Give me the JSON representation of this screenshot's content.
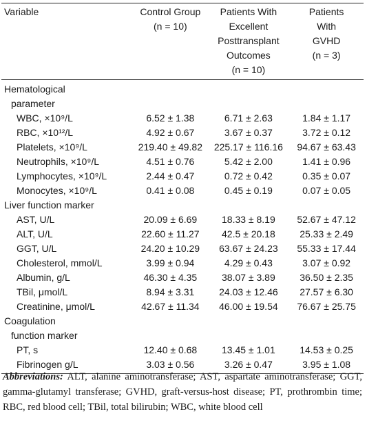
{
  "table": {
    "headers": [
      {
        "lines": [
          "Variable"
        ]
      },
      {
        "lines": [
          "Control Group",
          "(n = 10)"
        ]
      },
      {
        "lines": [
          "Patients With",
          "Excellent",
          "Posttransplant",
          "Outcomes",
          "(n = 10)"
        ]
      },
      {
        "lines": [
          "Patients",
          "With",
          "GVHD",
          "(n = 3)"
        ]
      }
    ],
    "sections": [
      {
        "title_lines": [
          "Hematological",
          "parameter"
        ],
        "rows": [
          {
            "label": "WBC, ×10⁹/L",
            "values": [
              "6.52 ± 1.38",
              "6.71 ± 2.63",
              "1.84 ± 1.17"
            ]
          },
          {
            "label": "RBC, ×10¹²/L",
            "values": [
              "4.92 ± 0.67",
              "3.67 ± 0.37",
              "3.72 ± 0.12"
            ]
          },
          {
            "label": "Platelets, ×10⁹/L",
            "values": [
              "219.40 ± 49.82",
              "225.17 ± 116.16",
              "94.67 ± 63.43"
            ]
          },
          {
            "label": "Neutrophils, ×10⁹/L",
            "values": [
              "4.51 ± 0.76",
              "5.42 ± 2.00",
              "1.41 ± 0.96"
            ]
          },
          {
            "label": "Lymphocytes, ×10⁹/L",
            "values": [
              "2.44 ± 0.47",
              "0.72 ± 0.42",
              "0.35 ± 0.07"
            ]
          },
          {
            "label": "Monocytes, ×10⁹/L",
            "values": [
              "0.41 ± 0.08",
              "0.45 ± 0.19",
              "0.07 ± 0.05"
            ]
          }
        ]
      },
      {
        "title_lines": [
          "Liver function marker"
        ],
        "rows": [
          {
            "label": "AST, U/L",
            "values": [
              "20.09 ± 6.69",
              "18.33 ± 8.19",
              "52.67 ± 47.12"
            ]
          },
          {
            "label": "ALT, U/L",
            "values": [
              "22.60 ± 11.27",
              "42.5 ± 20.18",
              "25.33 ± 2.49"
            ]
          },
          {
            "label": "GGT, U/L",
            "values": [
              "24.20 ± 10.29",
              "63.67 ± 24.23",
              "55.33 ± 17.44"
            ]
          },
          {
            "label": "Cholesterol, mmol/L",
            "values": [
              "3.99 ± 0.94",
              "4.29 ± 0.43",
              "3.07 ± 0.92"
            ]
          },
          {
            "label": "Albumin, g/L",
            "values": [
              "46.30 ± 4.35",
              "38.07 ± 3.89",
              "36.50 ± 2.35"
            ]
          },
          {
            "label": "TBil, μmol/L",
            "values": [
              "8.94 ± 3.31",
              "24.03 ± 12.46",
              "27.57 ± 6.30"
            ]
          },
          {
            "label": "Creatinine, μmol/L",
            "values": [
              "42.67 ± 11.34",
              "46.00 ± 19.54",
              "76.67 ± 25.75"
            ]
          }
        ]
      },
      {
        "title_lines": [
          "Coagulation",
          "function marker"
        ],
        "rows": [
          {
            "label": "PT, s",
            "values": [
              "12.40 ± 0.68",
              "13.45 ± 1.01",
              "14.53 ± 0.25"
            ]
          },
          {
            "label": "Fibrinogen g/L",
            "values": [
              "3.03 ± 0.56",
              "3.26 ± 0.47",
              "3.95 ± 1.08"
            ]
          }
        ]
      }
    ]
  },
  "abbreviations": {
    "label": "Abbreviations:",
    "text": "ALT, alanine aminotransferase; AST, aspartate aminotransferase; GGT, gamma-glutamyl transferase; GVHD, graft-versus-host disease; PT, prothrombin time; RBC, red blood cell; TBil, total bilirubin; WBC, white blood cell"
  }
}
